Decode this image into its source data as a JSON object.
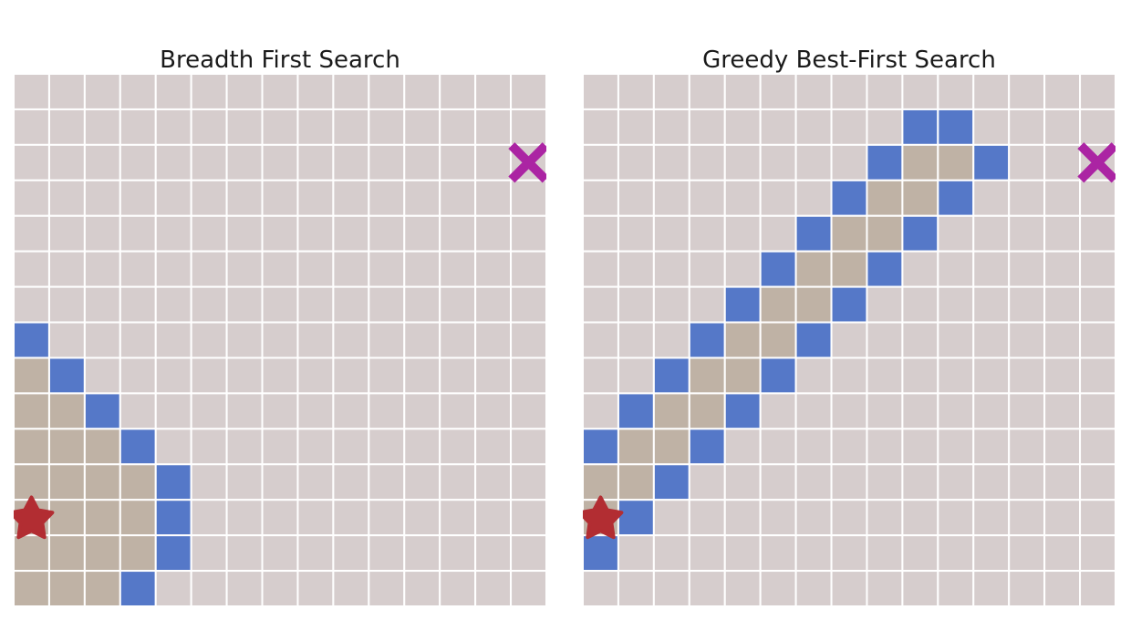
{
  "colors": {
    "background": "#ffffff",
    "empty_cell": "#d6cdcd",
    "visited_cell": "#bfb2a5",
    "frontier_cell": "#5578c8",
    "grid_line": "#ffffff",
    "start_marker": "#b22d32",
    "goal_marker": "#ab24a3"
  },
  "legend_semantics": {
    "empty": "unexplored",
    "visited": "visited",
    "frontier": "frontier",
    "start": "star-icon",
    "goal": "x-icon"
  },
  "grid": {
    "cols": 15,
    "rows": 15
  },
  "panels": [
    {
      "id": "bfs",
      "title": "Breadth First Search",
      "start": [
        0,
        12
      ],
      "goal": [
        14,
        2
      ],
      "visited": [
        [
          0,
          8
        ],
        [
          0,
          9
        ],
        [
          1,
          9
        ],
        [
          0,
          10
        ],
        [
          1,
          10
        ],
        [
          2,
          10
        ],
        [
          0,
          11
        ],
        [
          1,
          11
        ],
        [
          2,
          11
        ],
        [
          3,
          11
        ],
        [
          0,
          12
        ],
        [
          1,
          12
        ],
        [
          2,
          12
        ],
        [
          3,
          12
        ],
        [
          0,
          13
        ],
        [
          1,
          13
        ],
        [
          2,
          13
        ],
        [
          3,
          13
        ],
        [
          0,
          14
        ],
        [
          1,
          14
        ],
        [
          2,
          14
        ]
      ],
      "frontier": [
        [
          0,
          7
        ],
        [
          1,
          8
        ],
        [
          2,
          9
        ],
        [
          3,
          10
        ],
        [
          4,
          11
        ],
        [
          4,
          12
        ],
        [
          4,
          13
        ],
        [
          3,
          14
        ]
      ]
    },
    {
      "id": "greedy",
      "title": "Greedy Best-First Search",
      "start": [
        0,
        12
      ],
      "goal": [
        14,
        2
      ],
      "visited": [
        [
          9,
          2
        ],
        [
          10,
          2
        ],
        [
          8,
          3
        ],
        [
          9,
          3
        ],
        [
          7,
          4
        ],
        [
          8,
          4
        ],
        [
          6,
          5
        ],
        [
          7,
          5
        ],
        [
          5,
          6
        ],
        [
          6,
          6
        ],
        [
          4,
          7
        ],
        [
          5,
          7
        ],
        [
          3,
          8
        ],
        [
          4,
          8
        ],
        [
          2,
          9
        ],
        [
          3,
          9
        ],
        [
          1,
          10
        ],
        [
          2,
          10
        ],
        [
          0,
          11
        ],
        [
          1,
          11
        ],
        [
          0,
          12
        ]
      ],
      "frontier": [
        [
          9,
          1
        ],
        [
          10,
          1
        ],
        [
          8,
          2
        ],
        [
          11,
          2
        ],
        [
          7,
          3
        ],
        [
          10,
          3
        ],
        [
          6,
          4
        ],
        [
          9,
          4
        ],
        [
          5,
          5
        ],
        [
          8,
          5
        ],
        [
          4,
          6
        ],
        [
          7,
          6
        ],
        [
          3,
          7
        ],
        [
          6,
          7
        ],
        [
          2,
          8
        ],
        [
          5,
          8
        ],
        [
          1,
          9
        ],
        [
          4,
          9
        ],
        [
          0,
          10
        ],
        [
          3,
          10
        ],
        [
          2,
          11
        ],
        [
          1,
          12
        ],
        [
          0,
          13
        ]
      ]
    }
  ]
}
